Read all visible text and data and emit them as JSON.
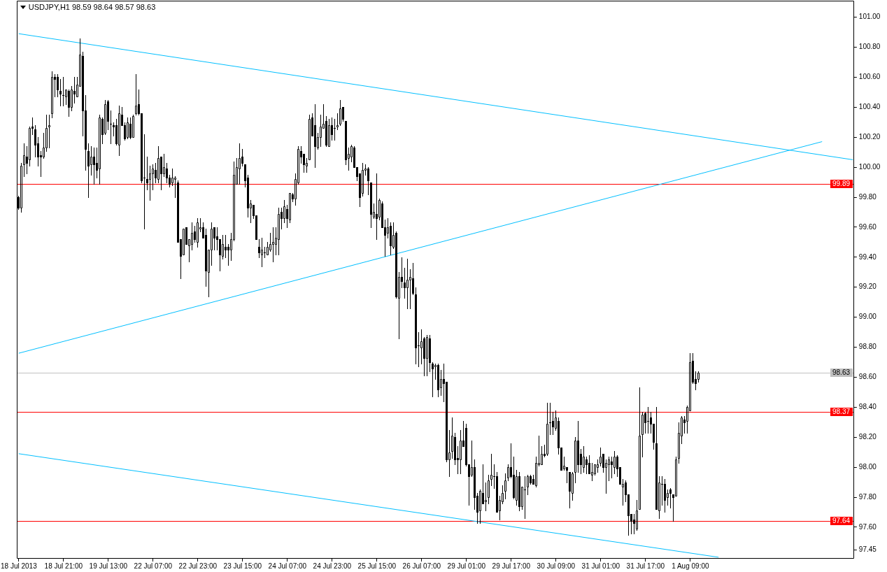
{
  "chart_data": {
    "type": "candlestick",
    "title": "USDJPY,H1 98.59 98.64 98.57 98.63",
    "categories": [
      "18 Jul 2013",
      null,
      null,
      null,
      null,
      null,
      null,
      null,
      null,
      null,
      null,
      null,
      null,
      null,
      null,
      null,
      "18 Jul 21:00",
      null,
      null,
      null,
      null,
      null,
      null,
      null,
      null,
      null,
      null,
      null,
      null,
      null,
      null,
      null,
      "19 Jul 13:00",
      null,
      null,
      null,
      null,
      null,
      null,
      null,
      null,
      null,
      null,
      null,
      null,
      null,
      null,
      null,
      "22 Jul 07:00",
      null,
      null,
      null,
      null,
      null,
      null,
      null,
      null,
      null,
      null,
      null,
      null,
      null,
      null,
      null,
      "22 Jul 23:00",
      null,
      null,
      null,
      null,
      null,
      null,
      null,
      null,
      null,
      null,
      null,
      null,
      null,
      null,
      null,
      "23 Jul 15:00",
      null,
      null,
      null,
      null,
      null,
      null,
      null,
      null,
      null,
      null,
      null,
      null,
      null,
      null,
      null,
      "24 Jul 07:00",
      null,
      null,
      null,
      null,
      null,
      null,
      null,
      null,
      null,
      null,
      null,
      null,
      null,
      null,
      null,
      "24 Jul 23:00",
      null,
      null,
      null,
      null,
      null,
      null,
      null,
      null,
      null,
      null,
      null,
      null,
      null,
      null,
      null,
      "25 Jul 15:00",
      null,
      null,
      null,
      null,
      null,
      null,
      null,
      null,
      null,
      null,
      null,
      null,
      null,
      null,
      null,
      "26 Jul 07:00",
      null,
      null,
      null,
      null,
      null,
      null,
      null,
      null,
      null,
      null,
      null,
      null,
      null,
      null,
      null,
      "29 Jul 01:00",
      null,
      null,
      null,
      null,
      null,
      null,
      null,
      null,
      null,
      null,
      null,
      null,
      null,
      null,
      null,
      "29 Jul 17:00",
      null,
      null,
      null,
      null,
      null,
      null,
      null,
      null,
      null,
      null,
      null,
      null,
      null,
      null,
      null,
      "30 Jul 09:00",
      null,
      null,
      null,
      null,
      null,
      null,
      null,
      null,
      null,
      null,
      null,
      null,
      null,
      null,
      null,
      "31 Jul 01:00",
      null,
      null,
      null,
      null,
      null,
      null,
      null,
      null,
      null,
      null,
      null,
      null,
      null,
      null,
      null,
      "31 Jul 17:00",
      null,
      null,
      null,
      null,
      null,
      null,
      null,
      null,
      null,
      null,
      null,
      null,
      null,
      null,
      null,
      "1 Aug 09:00",
      null,
      null,
      null,
      null,
      null,
      null,
      null,
      null,
      null,
      null,
      null,
      null,
      null,
      null,
      null,
      null,
      null,
      null,
      null,
      null,
      null,
      null,
      null,
      null,
      null,
      null,
      null,
      null,
      null,
      null,
      null,
      null,
      null,
      null,
      null,
      null,
      null,
      null,
      null,
      null,
      null,
      null,
      null,
      null,
      null,
      null,
      null,
      null,
      null,
      null,
      null,
      null,
      null,
      null,
      null,
      null,
      null,
      null
    ],
    "ohlc": [
      [
        99.8,
        99.81,
        99.72,
        99.73
      ],
      [
        99.73,
        100.03,
        99.7,
        100.01
      ],
      [
        100.02,
        100.16,
        99.94,
        100.08
      ],
      [
        100.07,
        100.14,
        99.96,
        100.03
      ],
      [
        100.05,
        100.27,
        100.01,
        100.26
      ],
      [
        100.27,
        100.33,
        100.22,
        100.26
      ],
      [
        100.25,
        100.28,
        100.07,
        100.15
      ],
      [
        100.16,
        100.2,
        100.01,
        100.07
      ],
      [
        100.08,
        100.11,
        99.94,
        100.07
      ],
      [
        100.07,
        100.23,
        100.06,
        100.13
      ],
      [
        100.13,
        100.35,
        100.11,
        100.26
      ],
      [
        100.27,
        100.35,
        100.13,
        100.28
      ],
      [
        100.36,
        100.64,
        100.33,
        100.6
      ],
      [
        100.6,
        100.62,
        100.47,
        100.59
      ],
      [
        100.6,
        100.62,
        100.47,
        100.52
      ],
      [
        100.51,
        100.59,
        100.41,
        100.49
      ],
      [
        100.48,
        100.6,
        100.41,
        100.48
      ],
      [
        100.47,
        100.52,
        100.42,
        100.52
      ],
      [
        100.51,
        100.52,
        100.34,
        100.4
      ],
      [
        100.4,
        100.54,
        100.38,
        100.52
      ],
      [
        100.51,
        100.6,
        100.43,
        100.49
      ],
      [
        100.47,
        100.6,
        100.47,
        100.55
      ],
      [
        100.54,
        100.86,
        100.54,
        100.75
      ],
      [
        100.74,
        100.77,
        100.21,
        100.38
      ],
      [
        100.38,
        100.48,
        99.98,
        100.12
      ],
      [
        100.11,
        100.16,
        99.8,
        100.01
      ],
      [
        100.02,
        100.14,
        99.95,
        100.07
      ],
      [
        100.07,
        100.13,
        99.89,
        100.02
      ],
      [
        100.03,
        100.13,
        99.93,
        99.98
      ],
      [
        99.99,
        100.35,
        99.89,
        100.33
      ],
      [
        100.32,
        100.33,
        100.16,
        100.22
      ],
      [
        100.23,
        100.45,
        100.22,
        100.42
      ],
      [
        100.44,
        100.45,
        100.25,
        100.31
      ],
      [
        100.29,
        100.38,
        100.16,
        100.29
      ],
      [
        100.28,
        100.3,
        100.21,
        100.27
      ],
      [
        100.28,
        100.32,
        100.15,
        100.16
      ],
      [
        100.15,
        100.41,
        100.08,
        100.36
      ],
      [
        100.35,
        100.4,
        100.28,
        100.28
      ],
      [
        100.28,
        100.3,
        100.18,
        100.19
      ],
      [
        100.2,
        100.33,
        100.19,
        100.3
      ],
      [
        100.29,
        100.33,
        100.19,
        100.2
      ],
      [
        100.2,
        100.35,
        100.2,
        100.34
      ],
      [
        100.36,
        100.62,
        100.35,
        100.41
      ],
      [
        100.42,
        100.52,
        100.35,
        100.36
      ],
      [
        100.36,
        100.36,
        99.9,
        99.91
      ],
      [
        99.93,
        100.22,
        99.59,
        99.93
      ],
      [
        99.92,
        100.07,
        99.85,
        99.9
      ],
      [
        99.92,
        100.01,
        99.78,
        99.96
      ],
      [
        99.96,
        100.02,
        99.85,
        99.99
      ],
      [
        99.98,
        100.03,
        99.9,
        99.93
      ],
      [
        99.92,
        100.14,
        99.9,
        100.06
      ],
      [
        100.07,
        100.07,
        99.85,
        99.96
      ],
      [
        99.96,
        100.09,
        99.94,
        100.0
      ],
      [
        99.99,
        100.03,
        99.9,
        99.93
      ],
      [
        99.93,
        99.95,
        99.87,
        99.89
      ],
      [
        99.9,
        99.99,
        99.88,
        99.93
      ],
      [
        99.92,
        99.94,
        99.8,
        99.93
      ],
      [
        99.9,
        99.91,
        99.5,
        99.5
      ],
      [
        99.52,
        99.52,
        99.26,
        99.41
      ],
      [
        99.42,
        99.59,
        99.42,
        99.59
      ],
      [
        99.6,
        99.6,
        99.49,
        99.49
      ],
      [
        99.48,
        99.52,
        99.37,
        99.52
      ],
      [
        99.49,
        99.63,
        99.45,
        99.56
      ],
      [
        99.57,
        99.61,
        99.5,
        99.52
      ],
      [
        99.5,
        99.66,
        99.47,
        99.63
      ],
      [
        99.59,
        99.66,
        99.57,
        99.6
      ],
      [
        99.6,
        99.63,
        99.53,
        99.53
      ],
      [
        99.55,
        99.59,
        99.21,
        99.31
      ],
      [
        99.3,
        99.45,
        99.14,
        99.45
      ],
      [
        99.45,
        99.63,
        99.35,
        99.59
      ],
      [
        99.6,
        99.6,
        99.45,
        99.53
      ],
      [
        99.54,
        99.6,
        99.45,
        99.52
      ],
      [
        99.52,
        99.52,
        99.31,
        99.42
      ],
      [
        99.41,
        99.55,
        99.39,
        99.49
      ],
      [
        99.47,
        99.55,
        99.4,
        99.45
      ],
      [
        99.47,
        99.49,
        99.35,
        99.45
      ],
      [
        99.45,
        99.56,
        99.38,
        99.52
      ],
      [
        99.52,
        100.04,
        99.51,
        99.95
      ],
      [
        99.89,
        100.06,
        99.89,
        100.0
      ],
      [
        99.99,
        100.16,
        99.89,
        100.06
      ],
      [
        100.07,
        100.12,
        100.01,
        100.03
      ],
      [
        100.02,
        100.02,
        99.87,
        99.91
      ],
      [
        99.93,
        99.95,
        99.67,
        99.73
      ],
      [
        99.73,
        99.78,
        99.63,
        99.76
      ],
      [
        99.75,
        99.75,
        99.66,
        99.68
      ],
      [
        99.68,
        99.68,
        99.52,
        99.52
      ],
      [
        99.47,
        99.52,
        99.4,
        99.43
      ],
      [
        99.42,
        99.53,
        99.34,
        99.45
      ],
      [
        99.43,
        99.47,
        99.4,
        99.43
      ],
      [
        99.42,
        99.5,
        99.42,
        99.47
      ],
      [
        99.45,
        99.56,
        99.44,
        99.49
      ],
      [
        99.49,
        99.6,
        99.37,
        99.5
      ],
      [
        99.49,
        99.6,
        99.42,
        99.53
      ],
      [
        99.52,
        99.73,
        99.42,
        99.69
      ],
      [
        99.7,
        99.73,
        99.59,
        99.66
      ],
      [
        99.66,
        99.78,
        99.63,
        99.74
      ],
      [
        99.72,
        99.75,
        99.6,
        99.66
      ],
      [
        99.65,
        99.83,
        99.63,
        99.83
      ],
      [
        99.82,
        99.83,
        99.77,
        99.79
      ],
      [
        99.79,
        99.96,
        99.75,
        99.92
      ],
      [
        99.9,
        100.14,
        99.89,
        100.12
      ],
      [
        100.11,
        100.14,
        100.03,
        100.07
      ],
      [
        100.09,
        100.09,
        99.97,
        100.02
      ],
      [
        100.01,
        100.06,
        99.97,
        100.03
      ],
      [
        100.05,
        100.35,
        100.05,
        100.32
      ],
      [
        100.33,
        100.36,
        100.21,
        100.21
      ],
      [
        100.28,
        100.42,
        100.0,
        100.14
      ],
      [
        100.13,
        100.23,
        100.12,
        100.2
      ],
      [
        100.2,
        100.35,
        100.14,
        100.27
      ],
      [
        100.26,
        100.42,
        100.26,
        100.29
      ],
      [
        100.31,
        100.34,
        100.14,
        100.15
      ],
      [
        100.14,
        100.32,
        100.14,
        100.28
      ],
      [
        100.28,
        100.33,
        100.18,
        100.22
      ],
      [
        100.26,
        100.32,
        100.18,
        100.26
      ],
      [
        100.27,
        100.36,
        100.25,
        100.28
      ],
      [
        100.29,
        100.45,
        100.28,
        100.39
      ],
      [
        100.4,
        100.4,
        100.31,
        100.32
      ],
      [
        100.31,
        100.31,
        100.02,
        100.05
      ],
      [
        100.06,
        100.13,
        99.98,
        100.09
      ],
      [
        100.07,
        100.15,
        100.04,
        100.14
      ],
      [
        100.13,
        100.14,
        100.0,
        100.0
      ],
      [
        100.0,
        100.0,
        99.91,
        99.94
      ],
      [
        99.96,
        99.96,
        99.74,
        99.8
      ],
      [
        99.83,
        100.03,
        99.81,
        99.98
      ],
      [
        99.98,
        100.02,
        99.95,
        99.99
      ],
      [
        99.99,
        100.0,
        99.82,
        99.91
      ],
      [
        99.9,
        99.9,
        99.6,
        99.69
      ],
      [
        99.67,
        99.76,
        99.66,
        99.7
      ],
      [
        99.69,
        99.96,
        99.52,
        99.66
      ],
      [
        99.67,
        99.79,
        99.65,
        99.78
      ],
      [
        99.76,
        99.77,
        99.6,
        99.6
      ],
      [
        99.6,
        99.65,
        99.41,
        99.55
      ],
      [
        99.56,
        99.66,
        99.53,
        99.6
      ],
      [
        99.61,
        99.63,
        99.42,
        99.48
      ],
      [
        99.47,
        99.63,
        99.46,
        99.55
      ],
      [
        99.56,
        99.57,
        99.13,
        99.14
      ],
      [
        99.13,
        99.3,
        98.86,
        99.27
      ],
      [
        99.27,
        99.4,
        99.2,
        99.24
      ],
      [
        99.23,
        99.33,
        99.13,
        99.2
      ],
      [
        99.2,
        99.39,
        99.06,
        99.25
      ],
      [
        99.25,
        99.32,
        99.06,
        99.27
      ],
      [
        99.26,
        99.36,
        99.15,
        99.16
      ],
      [
        99.15,
        99.2,
        98.69,
        98.8
      ],
      [
        98.81,
        98.9,
        98.67,
        98.81
      ],
      [
        98.8,
        98.92,
        98.69,
        98.84
      ],
      [
        98.86,
        98.87,
        98.61,
        98.73
      ],
      [
        98.73,
        98.88,
        98.61,
        98.87
      ],
      [
        98.86,
        98.88,
        98.64,
        98.7
      ],
      [
        98.69,
        98.7,
        98.47,
        98.66
      ],
      [
        98.67,
        98.69,
        98.59,
        98.68
      ],
      [
        98.68,
        98.69,
        98.47,
        98.52
      ],
      [
        98.53,
        98.65,
        98.48,
        98.59
      ],
      [
        98.59,
        98.69,
        98.44,
        98.56
      ],
      [
        98.57,
        98.57,
        98.04,
        98.05
      ],
      [
        98.05,
        98.25,
        97.94,
        98.1
      ],
      [
        98.11,
        98.33,
        98.06,
        98.21
      ],
      [
        98.2,
        98.23,
        98.02,
        98.05
      ],
      [
        98.06,
        98.14,
        97.96,
        98.05
      ],
      [
        98.05,
        98.25,
        97.96,
        98.18
      ],
      [
        98.18,
        98.31,
        98.14,
        98.14
      ],
      [
        98.26,
        98.29,
        98.01,
        98.02
      ],
      [
        98.02,
        98.02,
        97.75,
        97.94
      ],
      [
        97.95,
        98.18,
        97.94,
        98.0
      ],
      [
        98.0,
        98.05,
        97.72,
        97.8
      ],
      [
        97.81,
        97.83,
        97.63,
        97.7
      ],
      [
        97.71,
        97.85,
        97.63,
        97.84
      ],
      [
        97.83,
        98.02,
        97.76,
        97.76
      ],
      [
        97.77,
        97.9,
        97.71,
        97.78
      ],
      [
        97.8,
        97.95,
        97.76,
        97.91
      ],
      [
        97.92,
        98.09,
        97.88,
        97.95
      ],
      [
        97.94,
        98.02,
        97.86,
        97.94
      ],
      [
        97.94,
        97.97,
        97.7,
        97.7
      ],
      [
        97.71,
        97.81,
        97.65,
        97.78
      ],
      [
        97.77,
        97.88,
        97.76,
        97.83
      ],
      [
        97.84,
        97.96,
        97.79,
        97.91
      ],
      [
        97.93,
        98.02,
        97.91,
        98.0
      ],
      [
        98.0,
        98.16,
        97.93,
        97.94
      ],
      [
        97.95,
        98.07,
        97.79,
        97.8
      ],
      [
        97.78,
        97.98,
        97.75,
        97.94
      ],
      [
        97.94,
        97.97,
        97.71,
        97.74
      ],
      [
        97.74,
        97.87,
        97.72,
        97.87
      ],
      [
        97.85,
        97.94,
        97.66,
        97.85
      ],
      [
        97.87,
        97.95,
        97.82,
        97.94
      ],
      [
        97.94,
        97.95,
        97.89,
        97.9
      ],
      [
        97.92,
        97.95,
        97.89,
        97.89
      ],
      [
        97.88,
        98.07,
        97.87,
        98.03
      ],
      [
        98.02,
        98.21,
        98.01,
        98.03
      ],
      [
        98.02,
        98.14,
        98.02,
        98.09
      ],
      [
        98.09,
        98.15,
        98.07,
        98.08
      ],
      [
        98.09,
        98.43,
        98.08,
        98.29
      ],
      [
        98.3,
        98.43,
        98.22,
        98.3
      ],
      [
        98.31,
        98.37,
        98.22,
        98.27
      ],
      [
        98.26,
        98.38,
        98.25,
        98.33
      ],
      [
        98.31,
        98.33,
        98.09,
        98.13
      ],
      [
        98.13,
        98.13,
        97.98,
        97.98
      ],
      [
        97.99,
        98.07,
        97.98,
        98.01
      ],
      [
        98.0,
        98.0,
        97.9,
        97.98
      ],
      [
        97.97,
        97.97,
        97.73,
        97.84
      ],
      [
        97.83,
        97.97,
        97.78,
        97.96
      ],
      [
        97.97,
        98.2,
        97.9,
        98.18
      ],
      [
        98.18,
        98.31,
        97.97,
        98.02
      ],
      [
        98.09,
        98.12,
        97.96,
        98.02
      ],
      [
        98.0,
        98.14,
        97.97,
        98.07
      ],
      [
        98.05,
        98.07,
        97.96,
        98.02
      ],
      [
        98.03,
        98.08,
        97.96,
        97.96
      ],
      [
        97.95,
        98.03,
        97.91,
        97.97
      ],
      [
        97.96,
        98.02,
        97.95,
        98.02
      ],
      [
        98.0,
        98.05,
        97.97,
        98.02
      ],
      [
        98.03,
        98.13,
        98.01,
        98.07
      ],
      [
        98.09,
        98.09,
        97.97,
        98.0
      ],
      [
        98.0,
        98.05,
        97.83,
        98.03
      ],
      [
        98.02,
        98.07,
        97.91,
        98.05
      ],
      [
        98.04,
        98.07,
        97.93,
        98.02
      ],
      [
        98.0,
        98.11,
        97.96,
        98.07
      ],
      [
        98.07,
        98.08,
        97.94,
        97.99
      ],
      [
        98.0,
        98.0,
        97.89,
        97.89
      ],
      [
        97.87,
        97.92,
        97.75,
        97.89
      ],
      [
        97.9,
        97.91,
        97.77,
        97.82
      ],
      [
        97.82,
        97.82,
        97.55,
        97.68
      ],
      [
        97.69,
        97.69,
        97.56,
        97.64
      ],
      [
        97.65,
        97.69,
        97.56,
        97.63
      ],
      [
        97.59,
        97.78,
        97.58,
        97.71
      ],
      [
        97.72,
        98.53,
        97.72,
        98.21
      ],
      [
        98.22,
        98.37,
        98.07,
        98.35
      ],
      [
        98.36,
        98.37,
        98.23,
        98.3
      ],
      [
        98.31,
        98.4,
        98.23,
        98.31
      ],
      [
        98.33,
        98.37,
        98.23,
        98.29
      ],
      [
        98.29,
        98.29,
        98.12,
        98.17
      ],
      [
        98.16,
        98.4,
        97.72,
        97.72
      ],
      [
        97.71,
        97.94,
        97.66,
        97.9
      ],
      [
        97.89,
        97.94,
        97.75,
        97.89
      ],
      [
        97.89,
        97.92,
        97.7,
        97.78
      ],
      [
        97.8,
        97.85,
        97.75,
        97.83
      ],
      [
        97.85,
        97.86,
        97.73,
        97.83
      ],
      [
        97.82,
        97.82,
        97.64,
        97.8
      ],
      [
        97.81,
        98.07,
        97.81,
        98.05
      ],
      [
        98.06,
        98.3,
        98.03,
        98.23
      ],
      [
        98.21,
        98.34,
        98.16,
        98.33
      ],
      [
        98.32,
        98.34,
        98.23,
        98.3
      ],
      [
        98.31,
        98.41,
        98.23,
        98.4
      ],
      [
        98.38,
        98.76,
        98.38,
        98.7
      ],
      [
        98.71,
        98.76,
        98.56,
        98.57
      ],
      [
        98.59,
        98.64,
        98.52,
        98.56
      ],
      [
        98.59,
        98.64,
        98.57,
        98.63
      ],
      null,
      null,
      null,
      null,
      null,
      null,
      null,
      null,
      null,
      null,
      null,
      null,
      null,
      null,
      null,
      null,
      null,
      null,
      null,
      null,
      null,
      null,
      null,
      null,
      null,
      null,
      null,
      null,
      null,
      null,
      null,
      null,
      null,
      null,
      null,
      null,
      null,
      null,
      null,
      null,
      null,
      null,
      null,
      null,
      null,
      null,
      null,
      null,
      null,
      null,
      null,
      null,
      null,
      null,
      null
    ],
    "series": [
      {
        "type": "line",
        "color": "#00bfff",
        "values": [
          100.89,
          null,
          null,
          null,
          null,
          null,
          null,
          null,
          null,
          null,
          null,
          null,
          null,
          null,
          null,
          null,
          null,
          null,
          null,
          null,
          null,
          null,
          null,
          null,
          null,
          null,
          null,
          null,
          null,
          null,
          null,
          null,
          null,
          null,
          null,
          null,
          null,
          null,
          null,
          null,
          null,
          null,
          null,
          null,
          null,
          null,
          null,
          null,
          null,
          null,
          null,
          null,
          null,
          null,
          null,
          null,
          null,
          null,
          null,
          null,
          null,
          null,
          null,
          null,
          null,
          null,
          null,
          null,
          null,
          null,
          null,
          null,
          null,
          null,
          null,
          null,
          null,
          null,
          null,
          null,
          null,
          null,
          null,
          null,
          null,
          null,
          null,
          null,
          null,
          null,
          null,
          null,
          null,
          null,
          null,
          null,
          null,
          null,
          null,
          null,
          null,
          null,
          null,
          null,
          null,
          null,
          null,
          null,
          null,
          null,
          null,
          null,
          null,
          null,
          null,
          null,
          null,
          null,
          null,
          null,
          null,
          null,
          null,
          null,
          null,
          null,
          null,
          null,
          null,
          null,
          null,
          null,
          null,
          null,
          null,
          null,
          null,
          null,
          null,
          null,
          null,
          null,
          null,
          null,
          null,
          null,
          null,
          null,
          null,
          null,
          null,
          null,
          null,
          null,
          null,
          null,
          null,
          null,
          null,
          null,
          null,
          null,
          null,
          null,
          null,
          null,
          null,
          null,
          null,
          null,
          null,
          null,
          null,
          null,
          null,
          null,
          null,
          null,
          null,
          null,
          null,
          null,
          null,
          null,
          null,
          null,
          null,
          null,
          null,
          null,
          null,
          null,
          null,
          null,
          null,
          null,
          null,
          null,
          null,
          null,
          null,
          null,
          null,
          null,
          null,
          null,
          null,
          null,
          null,
          null,
          null,
          null,
          null,
          null,
          null,
          null,
          null,
          null,
          null,
          null,
          null,
          null,
          null,
          null,
          null,
          null,
          null,
          null,
          null,
          null,
          null,
          null,
          null,
          null,
          null,
          null,
          null,
          null,
          null,
          null,
          null,
          null,
          null,
          null,
          null,
          null,
          null,
          null,
          null,
          null,
          null,
          null,
          null,
          null,
          null,
          null,
          null,
          null,
          null,
          null,
          null,
          null,
          null,
          null,
          null,
          null,
          null,
          null,
          null,
          null,
          null,
          null,
          null,
          null,
          null,
          null,
          null,
          null,
          null,
          null,
          null,
          null,
          null,
          null,
          null,
          null,
          null,
          null,
          null,
          null,
          null,
          null,
          null,
          null,
          null,
          null,
          null,
          null,
          100.05
        ]
      },
      {
        "type": "line",
        "color": "#00bfff",
        "values": [
          98.76,
          null,
          null,
          null,
          null,
          null,
          null,
          null,
          null,
          null,
          null,
          null,
          null,
          null,
          null,
          null,
          null,
          null,
          null,
          null,
          null,
          null,
          null,
          null,
          null,
          null,
          null,
          null,
          null,
          null,
          null,
          null,
          null,
          null,
          null,
          null,
          null,
          null,
          null,
          null,
          null,
          null,
          null,
          null,
          null,
          null,
          null,
          null,
          null,
          null,
          null,
          null,
          null,
          null,
          null,
          null,
          null,
          null,
          null,
          null,
          null,
          null,
          null,
          null,
          null,
          null,
          null,
          null,
          null,
          null,
          null,
          null,
          null,
          null,
          null,
          null,
          null,
          null,
          null,
          null,
          null,
          null,
          null,
          null,
          null,
          null,
          null,
          null,
          null,
          null,
          null,
          null,
          null,
          null,
          null,
          null,
          null,
          null,
          null,
          null,
          null,
          null,
          null,
          null,
          null,
          null,
          null,
          null,
          null,
          null,
          null,
          null,
          null,
          null,
          null,
          null,
          null,
          null,
          null,
          null,
          null,
          null,
          null,
          null,
          null,
          null,
          null,
          null,
          null,
          null,
          null,
          null,
          null,
          null,
          null,
          null,
          null,
          null,
          null,
          null,
          null,
          null,
          null,
          null,
          null,
          null,
          null,
          null,
          null,
          null,
          null,
          null,
          null,
          null,
          null,
          null,
          null,
          null,
          null,
          null,
          null,
          null,
          null,
          null,
          null,
          null,
          null,
          null,
          null,
          null,
          null,
          null,
          null,
          null,
          null,
          null,
          null,
          null,
          null,
          null,
          null,
          null,
          null,
          null,
          null,
          null,
          null,
          null,
          null,
          null,
          null,
          null,
          null,
          null,
          null,
          null,
          null,
          null,
          null,
          null,
          null,
          null,
          null,
          null,
          null,
          null,
          null,
          null,
          null,
          null,
          null,
          null,
          null,
          null,
          null,
          null,
          null,
          null,
          null,
          null,
          null,
          null,
          null,
          null,
          null,
          null,
          null,
          null,
          null,
          null,
          null,
          null,
          null,
          null,
          null,
          null,
          null,
          null,
          null,
          null,
          null,
          null,
          null,
          null,
          null,
          null,
          null,
          null,
          null,
          null,
          null,
          null,
          null,
          null,
          null,
          null,
          null,
          null,
          null,
          null,
          null,
          null,
          null,
          null,
          null,
          null,
          null,
          null,
          null,
          null,
          null,
          null,
          null,
          null,
          null,
          null,
          null,
          null,
          null,
          null,
          null,
          null,
          null,
          null,
          null,
          null,
          null,
          100.17,
          null,
          null,
          null,
          null,
          null,
          null,
          null,
          null,
          null,
          null,
          null
        ]
      },
      {
        "type": "line",
        "color": "#00bfff",
        "values": [
          98.09,
          null,
          null,
          null,
          null,
          null,
          null,
          null,
          null,
          null,
          null,
          null,
          null,
          null,
          null,
          null,
          null,
          null,
          null,
          null,
          null,
          null,
          null,
          null,
          null,
          null,
          null,
          null,
          null,
          null,
          null,
          null,
          null,
          null,
          null,
          null,
          null,
          null,
          null,
          null,
          null,
          null,
          null,
          null,
          null,
          null,
          null,
          null,
          null,
          null,
          null,
          null,
          null,
          null,
          null,
          null,
          null,
          null,
          null,
          null,
          null,
          null,
          null,
          null,
          null,
          null,
          null,
          null,
          null,
          null,
          null,
          null,
          null,
          null,
          null,
          null,
          null,
          null,
          null,
          null,
          null,
          null,
          null,
          null,
          null,
          null,
          null,
          null,
          null,
          null,
          null,
          null,
          null,
          null,
          null,
          null,
          null,
          null,
          null,
          null,
          null,
          null,
          null,
          null,
          null,
          null,
          null,
          null,
          null,
          null,
          null,
          null,
          null,
          null,
          null,
          null,
          null,
          null,
          null,
          null,
          null,
          null,
          null,
          null,
          null,
          null,
          null,
          null,
          null,
          null,
          null,
          null,
          null,
          null,
          null,
          null,
          null,
          null,
          null,
          null,
          null,
          null,
          null,
          null,
          null,
          null,
          null,
          null,
          null,
          null,
          null,
          null,
          null,
          null,
          null,
          null,
          null,
          null,
          null,
          null,
          null,
          null,
          null,
          null,
          null,
          null,
          null,
          null,
          null,
          null,
          null,
          null,
          null,
          null,
          null,
          null,
          null,
          null,
          null,
          null,
          null,
          null,
          null,
          null,
          null,
          null,
          null,
          null,
          null,
          null,
          null,
          null,
          null,
          null,
          null,
          null,
          null,
          null,
          null,
          null,
          null,
          null,
          null,
          null,
          null,
          null,
          null,
          null,
          null,
          null,
          null,
          null,
          null,
          null,
          null,
          null,
          null,
          null,
          null,
          null,
          null,
          null,
          null,
          null,
          null,
          null,
          null,
          null,
          null,
          null,
          null,
          null,
          null,
          null,
          null,
          null,
          null,
          null,
          null,
          null,
          null,
          null,
          null,
          null,
          null,
          null,
          null,
          null,
          null,
          null,
          97.4,
          null,
          null,
          null,
          null,
          null,
          null,
          null,
          null,
          null,
          null,
          null,
          null,
          null,
          null,
          null,
          null,
          null,
          null,
          null,
          null,
          null,
          null,
          null,
          null,
          null,
          null,
          null,
          null,
          null,
          null,
          null,
          null,
          null,
          null,
          null,
          null,
          null,
          null,
          null,
          null,
          null,
          null,
          null,
          null,
          null,
          null,
          null,
          null
        ]
      }
    ],
    "ylim": [
      97.39,
      101.11
    ],
    "yticks": [
      {
        "value": 101,
        "label": "101.00"
      },
      {
        "value": 100.8,
        "label": "100.80"
      },
      {
        "value": 100.6,
        "label": "100.60"
      },
      {
        "value": 100.4,
        "label": "100.40"
      },
      {
        "value": 100.2,
        "label": "100.20"
      },
      {
        "value": 100,
        "label": "100.00"
      },
      {
        "value": 99.8,
        "label": "99.80"
      },
      {
        "value": 99.6,
        "label": "99.60"
      },
      {
        "value": 99.4,
        "label": "99.40"
      },
      {
        "value": 99.2,
        "label": "99.20"
      },
      {
        "value": 99,
        "label": "99.00"
      },
      {
        "value": 98.8,
        "label": "98.80"
      },
      {
        "value": 98.6,
        "label": "98.60"
      },
      {
        "value": 98.4,
        "label": "98.40"
      },
      {
        "value": 98.2,
        "label": "98.20"
      },
      {
        "value": 98,
        "label": "98.00"
      },
      {
        "value": 97.8,
        "label": "97.80"
      },
      {
        "value": 97.6,
        "label": "97.60"
      },
      {
        "value": 97.45,
        "label": "97.45"
      }
    ],
    "ref_lines": [
      {
        "axis": "y",
        "value": 99.89,
        "label": "99.89",
        "color": "#ff0000"
      },
      {
        "axis": "y",
        "value": 98.63,
        "label": "98.63",
        "color": "#c0c0c0"
      },
      {
        "axis": "y",
        "value": 98.37,
        "label": "98.37",
        "color": "#ff0000"
      },
      {
        "axis": "y",
        "value": 97.64,
        "label": "97.64",
        "color": "#ff0000"
      }
    ]
  }
}
